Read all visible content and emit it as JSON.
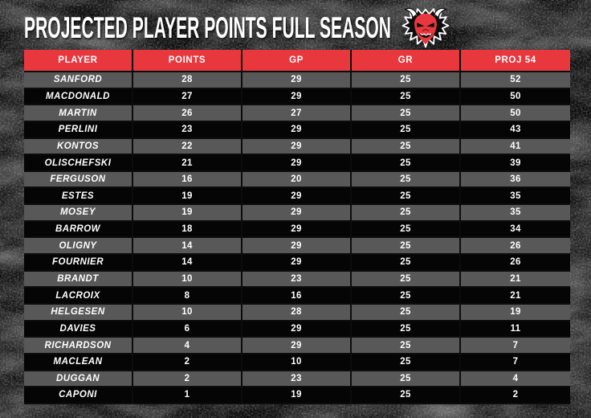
{
  "title": "PROJECTED PLAYER POINTS FULL SEASON",
  "logo_icon": "devil-head-logo",
  "colors": {
    "accent_red": "#e8383e",
    "row_gray": "#585858",
    "row_dark": "#050505",
    "grid_line": "#0c0c0c",
    "background": "#0b0b0b",
    "text": "#ffffff"
  },
  "chart_data": {
    "type": "table",
    "title": "PROJECTED PLAYER POINTS FULL SEASON",
    "columns": [
      "PLAYER",
      "POINTS",
      "GP",
      "GR",
      "PROJ 54"
    ],
    "column_keys": [
      "player",
      "points",
      "gp",
      "gr",
      "proj54"
    ],
    "rows": [
      {
        "player": "SANFORD",
        "points": 28,
        "gp": 29,
        "gr": 25,
        "proj54": 52
      },
      {
        "player": "MACDONALD",
        "points": 27,
        "gp": 29,
        "gr": 25,
        "proj54": 50
      },
      {
        "player": "MARTIN",
        "points": 26,
        "gp": 27,
        "gr": 25,
        "proj54": 50
      },
      {
        "player": "PERLINI",
        "points": 23,
        "gp": 29,
        "gr": 25,
        "proj54": 43
      },
      {
        "player": "KONTOS",
        "points": 22,
        "gp": 29,
        "gr": 25,
        "proj54": 41
      },
      {
        "player": "OLISCHEFSKI",
        "points": 21,
        "gp": 29,
        "gr": 25,
        "proj54": 39
      },
      {
        "player": "FERGUSON",
        "points": 16,
        "gp": 20,
        "gr": 25,
        "proj54": 36
      },
      {
        "player": "ESTES",
        "points": 19,
        "gp": 29,
        "gr": 25,
        "proj54": 35
      },
      {
        "player": "MOSEY",
        "points": 19,
        "gp": 29,
        "gr": 25,
        "proj54": 35
      },
      {
        "player": "BARROW",
        "points": 18,
        "gp": 29,
        "gr": 25,
        "proj54": 34
      },
      {
        "player": "OLIGNY",
        "points": 14,
        "gp": 29,
        "gr": 25,
        "proj54": 26
      },
      {
        "player": "FOURNIER",
        "points": 14,
        "gp": 29,
        "gr": 25,
        "proj54": 26
      },
      {
        "player": "BRANDT",
        "points": 10,
        "gp": 23,
        "gr": 25,
        "proj54": 21
      },
      {
        "player": "LACROIX",
        "points": 8,
        "gp": 16,
        "gr": 25,
        "proj54": 21
      },
      {
        "player": "HELGESEN",
        "points": 10,
        "gp": 28,
        "gr": 25,
        "proj54": 19
      },
      {
        "player": "DAVIES",
        "points": 6,
        "gp": 29,
        "gr": 25,
        "proj54": 11
      },
      {
        "player": "RICHARDSON",
        "points": 4,
        "gp": 29,
        "gr": 25,
        "proj54": 7
      },
      {
        "player": "MACLEAN",
        "points": 2,
        "gp": 10,
        "gr": 25,
        "proj54": 7
      },
      {
        "player": "DUGGAN",
        "points": 2,
        "gp": 23,
        "gr": 25,
        "proj54": 4
      },
      {
        "player": "CAPONI",
        "points": 1,
        "gp": 19,
        "gr": 25,
        "proj54": 2
      }
    ]
  }
}
